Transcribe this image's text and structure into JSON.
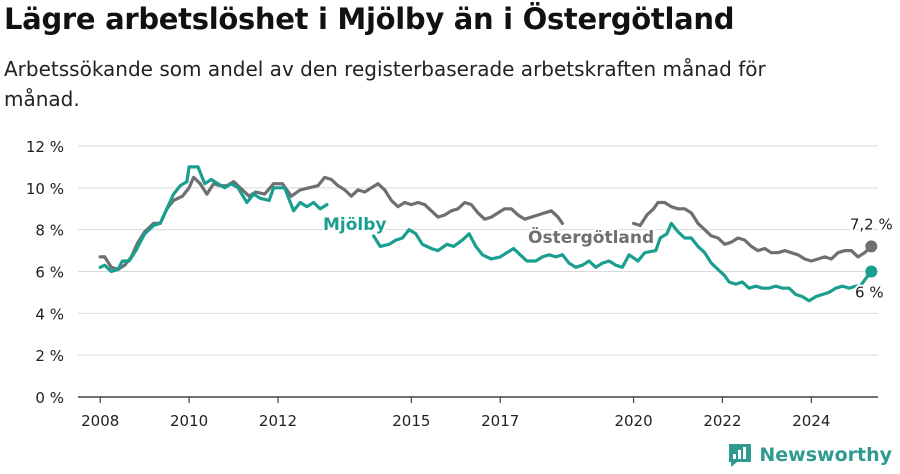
{
  "title": "Lägre arbetslöshet i Mjölby än i Östergötland",
  "subtitle": "Arbetssökande som andel av den registerbaserade arbetskraften månad för månad.",
  "brand": "Newsworthy",
  "chart_data": {
    "type": "line",
    "y_ticks": [
      "0 %",
      "2 %",
      "4 %",
      "6 %",
      "8 %",
      "10 %",
      "12 %"
    ],
    "x_ticks": [
      "2008",
      "2010",
      "2012",
      "2015",
      "2017",
      "2020",
      "2022",
      "2024"
    ],
    "ylim": [
      0,
      12
    ],
    "xlim": [
      2007.5,
      2025.5
    ],
    "grid": true,
    "colors": {
      "mjolby": "#1a9e8f",
      "ostergotland": "#6e6e73"
    },
    "series": [
      {
        "name": "Mjölby",
        "end_label": "6 %",
        "points": [
          [
            2008.0,
            6.2
          ],
          [
            2008.1,
            6.3
          ],
          [
            2008.25,
            6.0
          ],
          [
            2008.4,
            6.1
          ],
          [
            2008.5,
            6.5
          ],
          [
            2008.65,
            6.5
          ],
          [
            2008.8,
            7.0
          ],
          [
            2009.0,
            7.8
          ],
          [
            2009.2,
            8.2
          ],
          [
            2009.35,
            8.3
          ],
          [
            2009.5,
            9.0
          ],
          [
            2009.65,
            9.7
          ],
          [
            2009.8,
            10.1
          ],
          [
            2009.95,
            10.3
          ],
          [
            2010.0,
            11.0
          ],
          [
            2010.2,
            11.0
          ],
          [
            2010.35,
            10.2
          ],
          [
            2010.5,
            10.4
          ],
          [
            2010.65,
            10.2
          ],
          [
            2010.8,
            10.0
          ],
          [
            2010.95,
            10.2
          ],
          [
            2011.1,
            10.0
          ],
          [
            2011.3,
            9.3
          ],
          [
            2011.45,
            9.7
          ],
          [
            2011.6,
            9.5
          ],
          [
            2011.8,
            9.4
          ],
          [
            2011.9,
            10.0
          ],
          [
            2012.15,
            10.0
          ],
          [
            2012.35,
            8.9
          ],
          [
            2012.5,
            9.3
          ],
          [
            2012.65,
            9.1
          ],
          [
            2012.8,
            9.3
          ],
          [
            2012.95,
            9.0
          ],
          [
            2013.1,
            9.2
          ],
          null,
          [
            2014.15,
            7.7
          ],
          [
            2014.3,
            7.2
          ],
          [
            2014.5,
            7.3
          ],
          [
            2014.65,
            7.5
          ],
          [
            2014.8,
            7.6
          ],
          [
            2014.95,
            8.0
          ],
          [
            2015.1,
            7.8
          ],
          [
            2015.25,
            7.3
          ],
          [
            2015.45,
            7.1
          ],
          [
            2015.6,
            7.0
          ],
          [
            2015.8,
            7.3
          ],
          [
            2015.95,
            7.2
          ],
          [
            2016.15,
            7.5
          ],
          [
            2016.3,
            7.8
          ],
          [
            2016.45,
            7.2
          ],
          [
            2016.6,
            6.8
          ],
          [
            2016.8,
            6.6
          ],
          [
            2017.0,
            6.7
          ],
          [
            2017.15,
            6.9
          ],
          [
            2017.3,
            7.1
          ],
          [
            2017.45,
            6.8
          ],
          [
            2017.6,
            6.5
          ],
          [
            2017.8,
            6.5
          ],
          [
            2017.95,
            6.7
          ],
          [
            2018.1,
            6.8
          ],
          [
            2018.25,
            6.7
          ],
          [
            2018.4,
            6.8
          ],
          [
            2018.55,
            6.4
          ],
          [
            2018.7,
            6.2
          ],
          [
            2018.85,
            6.3
          ],
          [
            2019.0,
            6.5
          ],
          [
            2019.15,
            6.2
          ],
          [
            2019.3,
            6.4
          ],
          [
            2019.45,
            6.5
          ],
          [
            2019.6,
            6.3
          ],
          [
            2019.75,
            6.2
          ],
          [
            2019.9,
            6.8
          ],
          [
            2020.1,
            6.5
          ],
          [
            2020.25,
            6.9
          ],
          [
            2020.5,
            7.0
          ],
          [
            2020.6,
            7.6
          ],
          [
            2020.75,
            7.8
          ],
          [
            2020.85,
            8.3
          ],
          [
            2021.0,
            7.9
          ],
          [
            2021.15,
            7.6
          ],
          [
            2021.3,
            7.6
          ],
          [
            2021.45,
            7.2
          ],
          [
            2021.6,
            6.9
          ],
          [
            2021.75,
            6.4
          ],
          [
            2021.9,
            6.1
          ],
          [
            2022.05,
            5.8
          ],
          [
            2022.15,
            5.5
          ],
          [
            2022.3,
            5.4
          ],
          [
            2022.45,
            5.5
          ],
          [
            2022.6,
            5.2
          ],
          [
            2022.75,
            5.3
          ],
          [
            2022.9,
            5.2
          ],
          [
            2023.05,
            5.2
          ],
          [
            2023.2,
            5.3
          ],
          [
            2023.35,
            5.2
          ],
          [
            2023.5,
            5.2
          ],
          [
            2023.65,
            4.9
          ],
          [
            2023.8,
            4.8
          ],
          [
            2023.95,
            4.6
          ],
          [
            2024.1,
            4.8
          ],
          [
            2024.25,
            4.9
          ],
          [
            2024.4,
            5.0
          ],
          [
            2024.55,
            5.2
          ],
          [
            2024.7,
            5.3
          ],
          [
            2024.85,
            5.2
          ],
          [
            2025.0,
            5.3
          ],
          [
            2025.1,
            5.3
          ],
          [
            2025.2,
            5.6
          ],
          [
            2025.35,
            6.0
          ]
        ]
      },
      {
        "name": "Östergötland",
        "end_label": "7,2 %",
        "points": [
          [
            2008.0,
            6.7
          ],
          [
            2008.1,
            6.7
          ],
          [
            2008.25,
            6.2
          ],
          [
            2008.4,
            6.1
          ],
          [
            2008.55,
            6.3
          ],
          [
            2008.7,
            6.7
          ],
          [
            2008.85,
            7.4
          ],
          [
            2009.0,
            7.9
          ],
          [
            2009.2,
            8.3
          ],
          [
            2009.35,
            8.3
          ],
          [
            2009.5,
            9.0
          ],
          [
            2009.65,
            9.4
          ],
          [
            2009.85,
            9.6
          ],
          [
            2010.0,
            10.0
          ],
          [
            2010.1,
            10.5
          ],
          [
            2010.25,
            10.2
          ],
          [
            2010.4,
            9.7
          ],
          [
            2010.55,
            10.2
          ],
          [
            2010.7,
            10.1
          ],
          [
            2010.85,
            10.1
          ],
          [
            2011.0,
            10.3
          ],
          [
            2011.15,
            10.0
          ],
          [
            2011.35,
            9.6
          ],
          [
            2011.5,
            9.8
          ],
          [
            2011.7,
            9.7
          ],
          [
            2011.9,
            10.2
          ],
          [
            2012.1,
            10.2
          ],
          [
            2012.3,
            9.6
          ],
          [
            2012.5,
            9.9
          ],
          [
            2012.7,
            10.0
          ],
          [
            2012.9,
            10.1
          ],
          [
            2013.05,
            10.5
          ],
          [
            2013.2,
            10.4
          ],
          [
            2013.35,
            10.1
          ],
          [
            2013.5,
            9.9
          ],
          [
            2013.65,
            9.6
          ],
          [
            2013.8,
            9.9
          ],
          [
            2013.95,
            9.8
          ],
          [
            2014.1,
            10.0
          ],
          [
            2014.25,
            10.2
          ],
          [
            2014.4,
            9.9
          ],
          [
            2014.55,
            9.4
          ],
          [
            2014.7,
            9.1
          ],
          [
            2014.85,
            9.3
          ],
          [
            2015.0,
            9.2
          ],
          [
            2015.15,
            9.3
          ],
          [
            2015.3,
            9.2
          ],
          [
            2015.45,
            8.9
          ],
          [
            2015.6,
            8.6
          ],
          [
            2015.75,
            8.7
          ],
          [
            2015.9,
            8.9
          ],
          [
            2016.05,
            9.0
          ],
          [
            2016.2,
            9.3
          ],
          [
            2016.35,
            9.2
          ],
          [
            2016.5,
            8.8
          ],
          [
            2016.65,
            8.5
          ],
          [
            2016.8,
            8.6
          ],
          [
            2016.95,
            8.8
          ],
          [
            2017.1,
            9.0
          ],
          [
            2017.25,
            9.0
          ],
          [
            2017.4,
            8.7
          ],
          [
            2017.55,
            8.5
          ],
          [
            2017.7,
            8.6
          ],
          [
            2017.85,
            8.7
          ],
          [
            2018.0,
            8.8
          ],
          [
            2018.15,
            8.9
          ],
          [
            2018.3,
            8.6
          ],
          [
            2018.4,
            8.3
          ],
          null,
          [
            2020.0,
            8.3
          ],
          [
            2020.15,
            8.2
          ],
          [
            2020.3,
            8.7
          ],
          [
            2020.45,
            9.0
          ],
          [
            2020.55,
            9.3
          ],
          [
            2020.7,
            9.3
          ],
          [
            2020.85,
            9.1
          ],
          [
            2021.0,
            9.0
          ],
          [
            2021.15,
            9.0
          ],
          [
            2021.3,
            8.8
          ],
          [
            2021.45,
            8.3
          ],
          [
            2021.6,
            8.0
          ],
          [
            2021.75,
            7.7
          ],
          [
            2021.9,
            7.6
          ],
          [
            2022.05,
            7.3
          ],
          [
            2022.2,
            7.4
          ],
          [
            2022.35,
            7.6
          ],
          [
            2022.5,
            7.5
          ],
          [
            2022.65,
            7.2
          ],
          [
            2022.8,
            7.0
          ],
          [
            2022.95,
            7.1
          ],
          [
            2023.1,
            6.9
          ],
          [
            2023.25,
            6.9
          ],
          [
            2023.4,
            7.0
          ],
          [
            2023.55,
            6.9
          ],
          [
            2023.7,
            6.8
          ],
          [
            2023.85,
            6.6
          ],
          [
            2024.0,
            6.5
          ],
          [
            2024.15,
            6.6
          ],
          [
            2024.3,
            6.7
          ],
          [
            2024.45,
            6.6
          ],
          [
            2024.6,
            6.9
          ],
          [
            2024.75,
            7.0
          ],
          [
            2024.9,
            7.0
          ],
          [
            2025.05,
            6.7
          ],
          [
            2025.2,
            6.9
          ],
          [
            2025.35,
            7.2
          ]
        ]
      }
    ]
  }
}
